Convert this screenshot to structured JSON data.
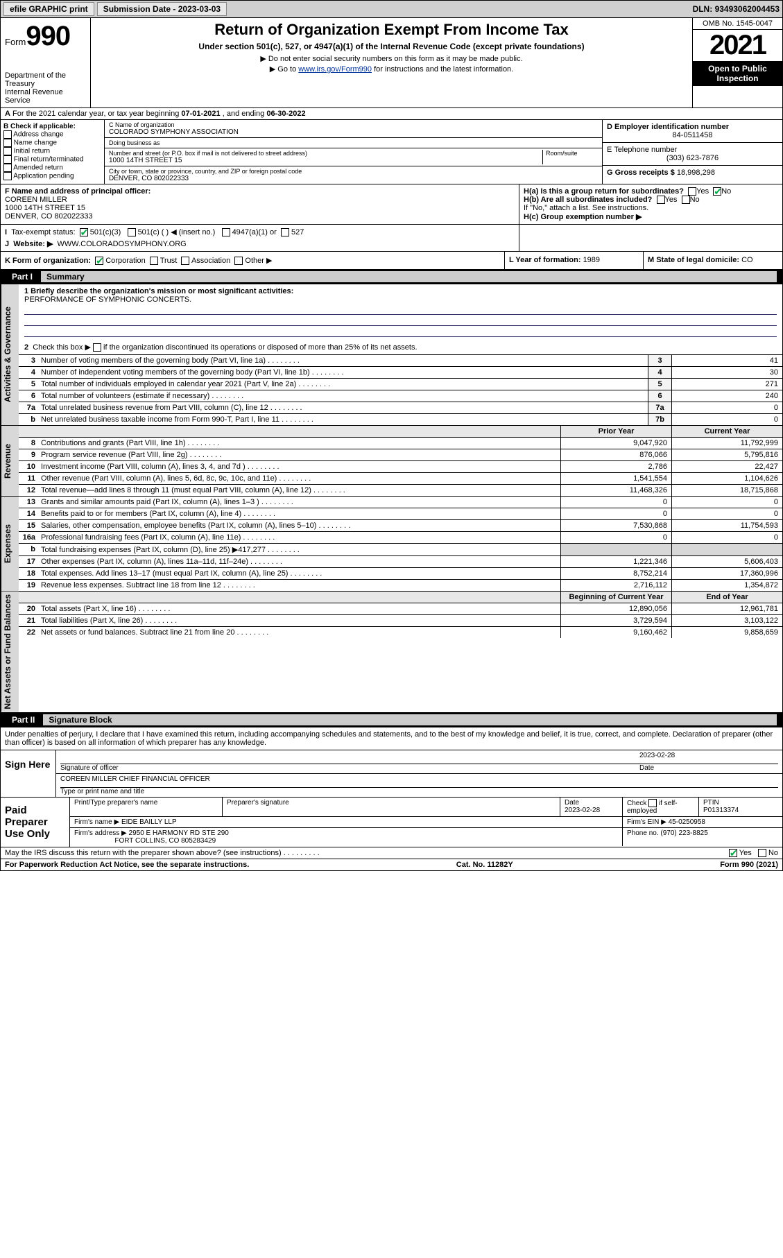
{
  "topbar": {
    "efile": "efile GRAPHIC print",
    "submission_label": "Submission Date - ",
    "submission_date": "2023-03-03",
    "dln_label": "DLN: ",
    "dln": "93493062004453"
  },
  "header": {
    "form_prefix": "Form",
    "form_num": "990",
    "title": "Return of Organization Exempt From Income Tax",
    "subtitle": "Under section 501(c), 527, or 4947(a)(1) of the Internal Revenue Code (except private foundations)",
    "note1": "▶ Do not enter social security numbers on this form as it may be made public.",
    "note2_pre": "▶ Go to ",
    "note2_link": "www.irs.gov/Form990",
    "note2_post": " for instructions and the latest information.",
    "dept": "Department of the Treasury",
    "irs": "Internal Revenue Service",
    "omb": "OMB No. 1545-0047",
    "year": "2021",
    "open1": "Open to Public",
    "open2": "Inspection"
  },
  "rowA": {
    "text_pre": "For the 2021 calendar year, or tax year beginning ",
    "begin": "07-01-2021",
    "mid": " , and ending ",
    "end": "06-30-2022"
  },
  "colB": {
    "hdr": "B Check if applicable:",
    "items": [
      "Address change",
      "Name change",
      "Initial return",
      "Final return/terminated",
      "Amended return",
      "Application pending"
    ]
  },
  "colC": {
    "name_lbl": "C Name of organization",
    "name": "COLORADO SYMPHONY ASSOCIATION",
    "dba_lbl": "Doing business as",
    "dba": "",
    "street_lbl": "Number and street (or P.O. box if mail is not delivered to street address)",
    "room_lbl": "Room/suite",
    "street": "1000 14TH STREET 15",
    "city_lbl": "City or town, state or province, country, and ZIP or foreign postal code",
    "city": "DENVER, CO  802022333"
  },
  "colDE": {
    "d_lbl": "D Employer identification number",
    "d_val": "84-0511458",
    "e_lbl": "E Telephone number",
    "e_val": "(303) 623-7876",
    "g_lbl": "G Gross receipts $ ",
    "g_val": "18,998,298"
  },
  "rowF": {
    "f_lbl": "F Name and address of principal officer:",
    "f_name": "COREEN MILLER",
    "f_addr1": "1000 14TH STREET 15",
    "f_addr2": "DENVER, CO  802022333",
    "ha": "H(a)  Is this a group return for subordinates?",
    "yes": "Yes",
    "no": "No",
    "hb": "H(b)  Are all subordinates included?",
    "hb_note": "If \"No,\" attach a list. See instructions.",
    "hc": "H(c)  Group exemption number ▶"
  },
  "rowI": {
    "lbl": "Tax-exempt status:",
    "o1": "501(c)(3)",
    "o2": "501(c) (  ) ◀ (insert no.)",
    "o3": "4947(a)(1) or",
    "o4": "527"
  },
  "rowJ": {
    "lbl": "Website: ▶",
    "val": "WWW.COLORADOSYMPHONY.ORG"
  },
  "rowK": {
    "lbl": "K Form of organization:",
    "o1": "Corporation",
    "o2": "Trust",
    "o3": "Association",
    "o4": "Other ▶",
    "l_lbl": "L Year of formation: ",
    "l_val": "1989",
    "m_lbl": "M State of legal domicile: ",
    "m_val": "CO"
  },
  "part1": {
    "tab": "Part I",
    "label": "Summary"
  },
  "mission": {
    "q1": "1  Briefly describe the organization's mission or most significant activities:",
    "txt": "PERFORMANCE OF SYMPHONIC CONCERTS.",
    "q2": "2  Check this box ▶        if the organization discontinued its operations or disposed of more than 25% of its net assets."
  },
  "vtabs": {
    "gov": "Activities & Governance",
    "rev": "Revenue",
    "exp": "Expenses",
    "net": "Net Assets or Fund Balances"
  },
  "lines_gov": [
    {
      "n": "3",
      "t": "Number of voting members of the governing body (Part VI, line 1a)",
      "box": "3",
      "v": "41"
    },
    {
      "n": "4",
      "t": "Number of independent voting members of the governing body (Part VI, line 1b)",
      "box": "4",
      "v": "30"
    },
    {
      "n": "5",
      "t": "Total number of individuals employed in calendar year 2021 (Part V, line 2a)",
      "box": "5",
      "v": "271"
    },
    {
      "n": "6",
      "t": "Total number of volunteers (estimate if necessary)",
      "box": "6",
      "v": "240"
    },
    {
      "n": "7a",
      "t": "Total unrelated business revenue from Part VIII, column (C), line 12",
      "box": "7a",
      "v": "0"
    },
    {
      "n": "b",
      "t": "Net unrelated business taxable income from Form 990-T, Part I, line 11",
      "box": "7b",
      "v": "0"
    }
  ],
  "hdr_prior": "Prior Year",
  "hdr_curr": "Current Year",
  "lines_rev": [
    {
      "n": "8",
      "t": "Contributions and grants (Part VIII, line 1h)",
      "p": "9,047,920",
      "c": "11,792,999"
    },
    {
      "n": "9",
      "t": "Program service revenue (Part VIII, line 2g)",
      "p": "876,066",
      "c": "5,795,816"
    },
    {
      "n": "10",
      "t": "Investment income (Part VIII, column (A), lines 3, 4, and 7d )",
      "p": "2,786",
      "c": "22,427"
    },
    {
      "n": "11",
      "t": "Other revenue (Part VIII, column (A), lines 5, 6d, 8c, 9c, 10c, and 11e)",
      "p": "1,541,554",
      "c": "1,104,626"
    },
    {
      "n": "12",
      "t": "Total revenue—add lines 8 through 11 (must equal Part VIII, column (A), line 12)",
      "p": "11,468,326",
      "c": "18,715,868"
    }
  ],
  "lines_exp": [
    {
      "n": "13",
      "t": "Grants and similar amounts paid (Part IX, column (A), lines 1–3 )",
      "p": "0",
      "c": "0"
    },
    {
      "n": "14",
      "t": "Benefits paid to or for members (Part IX, column (A), line 4)",
      "p": "0",
      "c": "0"
    },
    {
      "n": "15",
      "t": "Salaries, other compensation, employee benefits (Part IX, column (A), lines 5–10)",
      "p": "7,530,868",
      "c": "11,754,593"
    },
    {
      "n": "16a",
      "t": "Professional fundraising fees (Part IX, column (A), line 11e)",
      "p": "0",
      "c": "0"
    },
    {
      "n": "b",
      "t": "Total fundraising expenses (Part IX, column (D), line 25) ▶417,277",
      "p": "",
      "c": "",
      "shaded": true
    },
    {
      "n": "17",
      "t": "Other expenses (Part IX, column (A), lines 11a–11d, 11f–24e)",
      "p": "1,221,346",
      "c": "5,606,403"
    },
    {
      "n": "18",
      "t": "Total expenses. Add lines 13–17 (must equal Part IX, column (A), line 25)",
      "p": "8,752,214",
      "c": "17,360,996"
    },
    {
      "n": "19",
      "t": "Revenue less expenses. Subtract line 18 from line 12",
      "p": "2,716,112",
      "c": "1,354,872"
    }
  ],
  "hdr_begin": "Beginning of Current Year",
  "hdr_end": "End of Year",
  "lines_net": [
    {
      "n": "20",
      "t": "Total assets (Part X, line 16)",
      "p": "12,890,056",
      "c": "12,961,781"
    },
    {
      "n": "21",
      "t": "Total liabilities (Part X, line 26)",
      "p": "3,729,594",
      "c": "3,103,122"
    },
    {
      "n": "22",
      "t": "Net assets or fund balances. Subtract line 21 from line 20",
      "p": "9,160,462",
      "c": "9,858,659"
    }
  ],
  "part2": {
    "tab": "Part II",
    "label": "Signature Block"
  },
  "sig_decl": "Under penalties of perjury, I declare that I have examined this return, including accompanying schedules and statements, and to the best of my knowledge and belief, it is true, correct, and complete. Declaration of preparer (other than officer) is based on all information of which preparer has any knowledge.",
  "sign": {
    "here": "Sign Here",
    "date": "2023-02-28",
    "sig_lbl": "Signature of officer",
    "date_lbl": "Date",
    "name": "COREEN MILLER  CHIEF FINANCIAL OFFICER",
    "name_lbl": "Type or print name and title"
  },
  "paid": {
    "lbl": "Paid Preparer Use Only",
    "c1": "Print/Type preparer's name",
    "c2": "Preparer's signature",
    "c3": "Date",
    "c3v": "2023-02-28",
    "c4": "Check        if self-employed",
    "c5": "PTIN",
    "c5v": "P01313374",
    "firm_lbl": "Firm's name    ▶",
    "firm": "EIDE BAILLY LLP",
    "ein_lbl": "Firm's EIN ▶",
    "ein": "45-0250958",
    "addr_lbl": "Firm's address ▶",
    "addr1": "2950 E HARMONY RD STE 290",
    "addr2": "FORT COLLINS, CO  805283429",
    "ph_lbl": "Phone no. ",
    "ph": "(970) 223-8825"
  },
  "discuss": {
    "q": "May the IRS discuss this return with the preparer shown above? (see instructions)",
    "yes": "Yes",
    "no": "No"
  },
  "footer": {
    "left": "For Paperwork Reduction Act Notice, see the separate instructions.",
    "mid": "Cat. No. 11282Y",
    "right": "Form 990 (2021)"
  },
  "colors": {
    "link": "#003399",
    "topbar_bg": "#d0d0d0",
    "vtab_bg": "#d8d8d8",
    "check": "#0a8a0a"
  }
}
